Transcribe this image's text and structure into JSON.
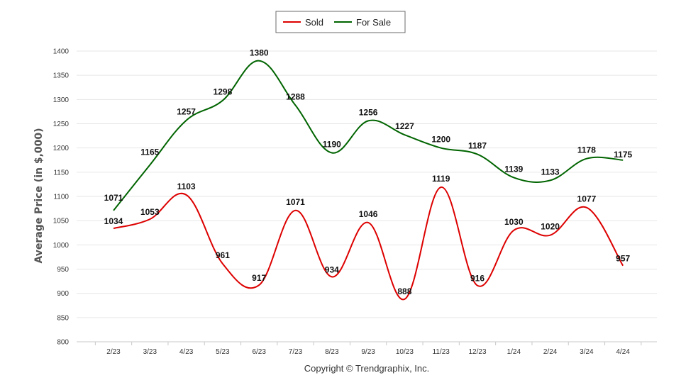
{
  "chart_data": {
    "type": "line",
    "title": "",
    "xlabel": "",
    "ylabel": "Average Price (in $,000)",
    "ylim": [
      800,
      1400
    ],
    "yticks": [
      800,
      850,
      900,
      950,
      1000,
      1050,
      1100,
      1150,
      1200,
      1250,
      1300,
      1350,
      1400
    ],
    "categories": [
      "2/23",
      "3/23",
      "4/23",
      "5/23",
      "6/23",
      "7/23",
      "8/23",
      "9/23",
      "10/23",
      "11/23",
      "12/23",
      "1/24",
      "2/24",
      "3/24",
      "4/24"
    ],
    "series": [
      {
        "name": "Sold",
        "color": "#dd0000",
        "values": [
          1034,
          1053,
          1103,
          961,
          917,
          1071,
          934,
          1046,
          888,
          1119,
          916,
          1030,
          1020,
          1077,
          957
        ]
      },
      {
        "name": "For Sale",
        "color": "#006400",
        "values": [
          1071,
          1165,
          1257,
          1298,
          1380,
          1288,
          1190,
          1256,
          1227,
          1200,
          1187,
          1139,
          1133,
          1178,
          1175
        ]
      }
    ],
    "grid": true,
    "legend": "top-center",
    "smooth": true
  },
  "footer": {
    "copyright": "Copyright © Trendgraphix, Inc."
  }
}
